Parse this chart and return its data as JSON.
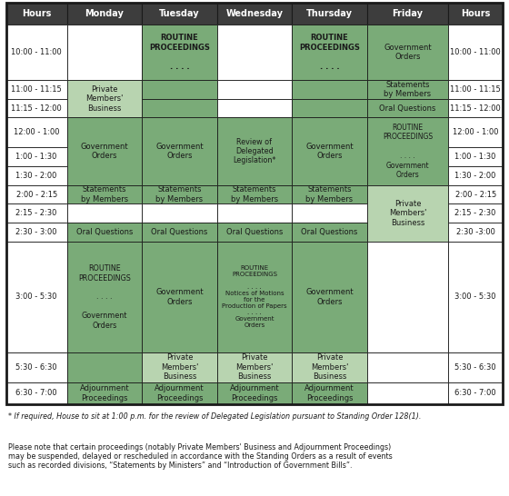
{
  "header_bg": "#3d3d3d",
  "header_fg": "#ffffff",
  "green_dark": "#7aab78",
  "green_light": "#b8d4b0",
  "white": "#ffffff",
  "border_color": "#1a1a1a",
  "text_color": "#1a1a1a",
  "columns": [
    "Hours",
    "Monday",
    "Tuesday",
    "Wednesday",
    "Thursday",
    "Friday",
    "Hours"
  ],
  "note1": "* If required, House to sit at 1:00 p.m. for the review of Delegated Legislation pursuant to Standing Order 128(1).",
  "note2": "Please note that certain proceedings (notably Private Members' Business and Adjournment Proceedings)\nmay be suspended, delayed or rescheduled in accordance with the Standing Orders as a result of events\nsuch as recorded divisions, “Statements by Ministers” and “Introduction of Government Bills”."
}
